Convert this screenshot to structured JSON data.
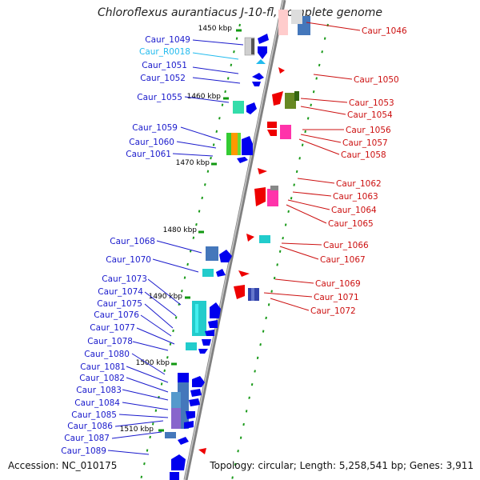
{
  "title": "Chloroflexus aurantiacus J-10-fl, complete genome",
  "accession": "Accession: NC_010175",
  "topology": "Topology: circular; Length: 5,258,541 bp; Genes: 3,911",
  "colors": {
    "forward_gene": "#0000ee",
    "reverse_gene": "#ee0000",
    "rna_gene": "#22bbee",
    "backbone": "#999999",
    "tick": "#119911"
  },
  "ticks": [
    "1450 kbp",
    "1460 kbp",
    "1470 kbp",
    "1480 kbp",
    "1490 kbp",
    "1500 kbp",
    "1510 kbp"
  ],
  "left_labels": [
    "Caur_1049",
    "Caur_R0018",
    "Caur_1051",
    "Caur_1052",
    "Caur_1055",
    "Caur_1059",
    "Caur_1060",
    "Caur_1061",
    "Caur_1068",
    "Caur_1070",
    "Caur_1073",
    "Caur_1074",
    "Caur_1075",
    "Caur_1076",
    "Caur_1077",
    "Caur_1078",
    "Caur_1080",
    "Caur_1081",
    "Caur_1082",
    "Caur_1083",
    "Caur_1084",
    "Caur_1085",
    "Caur_1086",
    "Caur_1087",
    "Caur_1089"
  ],
  "right_labels": [
    "Caur_1046",
    "Caur_1050",
    "Caur_1053",
    "Caur_1054",
    "Caur_1056",
    "Caur_1057",
    "Caur_1058",
    "Caur_1062",
    "Caur_1063",
    "Caur_1064",
    "Caur_1065",
    "Caur_1066",
    "Caur_1067",
    "Caur_1069",
    "Caur_1071",
    "Caur_1072"
  ]
}
